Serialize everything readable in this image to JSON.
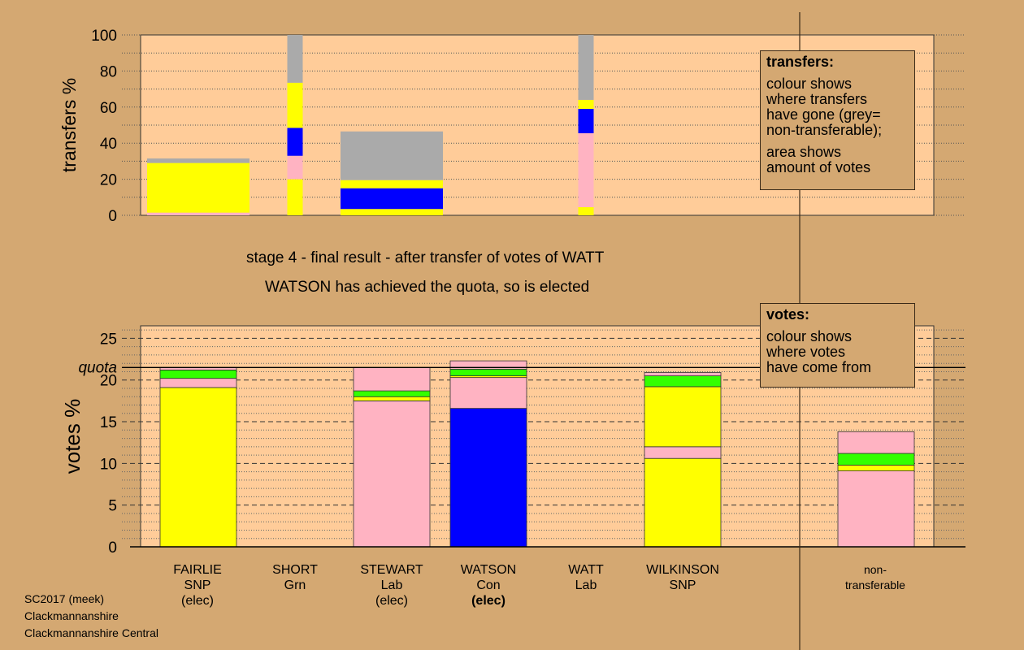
{
  "colors": {
    "background": "#D4A872",
    "plot_background": "#FFCC99",
    "SNP": "#FFFF00",
    "Grn": "#33FF00",
    "Lab": "#FFB3C2",
    "Con": "#0000FF",
    "non_transferable": "#AAAAAA"
  },
  "captions": {
    "stage": "stage 4 - final result - after transfer of votes of WATT",
    "elected": "WATSON has achieved the quota, so is elected"
  },
  "legend_transfers": {
    "title": "transfers:",
    "p1": [
      "colour shows",
      "where transfers",
      "have gone (grey=",
      "non-transferable);"
    ],
    "p2": [
      "area shows",
      "amount of votes"
    ]
  },
  "legend_votes": {
    "title": "votes:",
    "p1": [
      "colour shows",
      "where votes",
      "have come from"
    ]
  },
  "candidates": [
    {
      "name": "FAIRLIE",
      "party": "SNP",
      "status": "(elec)",
      "bold": false
    },
    {
      "name": "SHORT",
      "party": "Grn",
      "status": "",
      "bold": false
    },
    {
      "name": "STEWART",
      "party": "Lab",
      "status": "(elec)",
      "bold": false
    },
    {
      "name": "WATSON",
      "party": "Con",
      "status": "(elec)",
      "bold": true
    },
    {
      "name": "WATT",
      "party": "Lab",
      "status": "",
      "bold": false
    },
    {
      "name": "WILKINSON",
      "party": "SNP",
      "status": "",
      "bold": false
    },
    {
      "name": "non-",
      "party": "transferable",
      "status": "",
      "bold": false
    }
  ],
  "credit": [
    "SC2017 (meek)",
    "Clackmannanshire",
    "Clackmannanshire Central"
  ],
  "chart_data": [
    {
      "type": "bar",
      "stacked": true,
      "ylabel": "transfers %",
      "ylim": [
        0,
        100
      ],
      "yticks": [
        0,
        20,
        40,
        60,
        80,
        100
      ],
      "bars": [
        {
          "candidate": "FAIRLIE",
          "width": "wide",
          "segments": [
            {
              "party": "Lab",
              "value": 1.5
            },
            {
              "party": "SNP",
              "value": 27.5
            },
            {
              "party": "non_transferable",
              "value": 2.5
            }
          ]
        },
        {
          "candidate": "SHORT",
          "width": "narrow",
          "segments": [
            {
              "party": "SNP",
              "value": 20
            },
            {
              "party": "Lab",
              "value": 13
            },
            {
              "party": "Con",
              "value": 15.5
            },
            {
              "party": "SNP",
              "value": 25
            },
            {
              "party": "non_transferable",
              "value": 26.5
            }
          ]
        },
        {
          "candidate": "STEWART",
          "width": "wide",
          "segments": [
            {
              "party": "SNP",
              "value": 3.5
            },
            {
              "party": "Con",
              "value": 11.5
            },
            {
              "party": "SNP",
              "value": 4.5
            },
            {
              "party": "non_transferable",
              "value": 27
            }
          ]
        },
        {
          "candidate": "WATT",
          "width": "narrow",
          "segments": [
            {
              "party": "SNP",
              "value": 4.5
            },
            {
              "party": "Lab",
              "value": 41
            },
            {
              "party": "Con",
              "value": 13.5
            },
            {
              "party": "SNP",
              "value": 5
            },
            {
              "party": "non_transferable",
              "value": 36
            }
          ]
        }
      ]
    },
    {
      "type": "bar",
      "stacked": true,
      "ylabel": "votes %",
      "ylim": [
        0,
        26.5
      ],
      "yticks": [
        0,
        5,
        10,
        15,
        20,
        25
      ],
      "quota": 21.5,
      "quota_label": "quota",
      "bars": [
        {
          "candidate": "FAIRLIE",
          "segments": [
            {
              "party": "SNP",
              "value": 19.1
            },
            {
              "party": "Lab",
              "value": 1.1
            },
            {
              "party": "Grn",
              "value": 1.0
            },
            {
              "party": "Lab",
              "value": 0.3
            }
          ]
        },
        {
          "candidate": "STEWART",
          "segments": [
            {
              "party": "Lab",
              "value": 17.5
            },
            {
              "party": "SNP",
              "value": 0.5
            },
            {
              "party": "Grn",
              "value": 0.7
            },
            {
              "party": "Lab",
              "value": 2.8
            }
          ]
        },
        {
          "candidate": "WATSON",
          "segments": [
            {
              "party": "Con",
              "value": 16.6
            },
            {
              "party": "Lab",
              "value": 3.7
            },
            {
              "party": "SNP",
              "value": 0.2
            },
            {
              "party": "Grn",
              "value": 0.8
            },
            {
              "party": "Lab",
              "value": 1.0
            }
          ]
        },
        {
          "candidate": "WILKINSON",
          "segments": [
            {
              "party": "SNP",
              "value": 10.6
            },
            {
              "party": "Lab",
              "value": 1.4
            },
            {
              "party": "SNP",
              "value": 7.2
            },
            {
              "party": "Grn",
              "value": 1.3
            },
            {
              "party": "Lab",
              "value": 0.4
            }
          ]
        },
        {
          "candidate": "non-transferable",
          "segments": [
            {
              "party": "Lab",
              "value": 9.1
            },
            {
              "party": "SNP",
              "value": 0.7
            },
            {
              "party": "Grn",
              "value": 1.4
            },
            {
              "party": "Lab",
              "value": 2.6
            }
          ]
        }
      ]
    }
  ]
}
